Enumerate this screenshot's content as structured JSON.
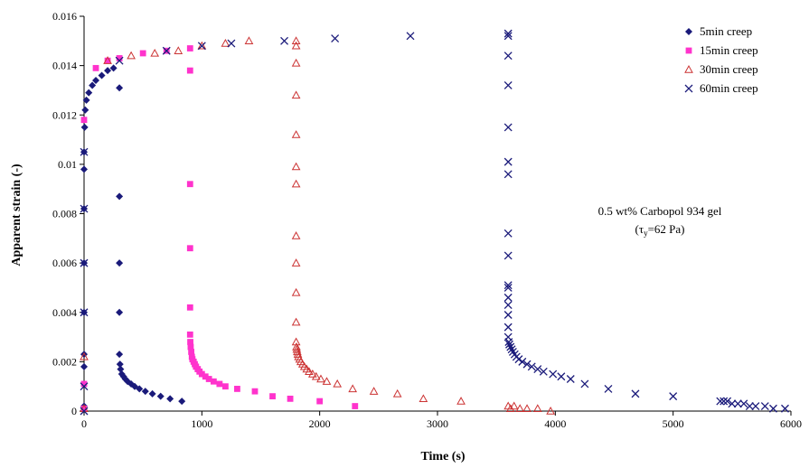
{
  "chart_data": {
    "type": "scatter",
    "xlabel": "Time (s)",
    "ylabel": "Apparent strain (-)",
    "xlim": [
      0,
      6000
    ],
    "ylim": [
      0,
      0.016
    ],
    "xticks": [
      "0",
      "1000",
      "2000",
      "3000",
      "4000",
      "5000",
      "6000"
    ],
    "yticks": [
      "0",
      "0.002",
      "0.004",
      "0.006",
      "0.008",
      "0.01",
      "0.012",
      "0.014",
      "0.016"
    ],
    "legend_position": "top-right",
    "grid": false,
    "annotation": {
      "line1": "0.5 wt% Carbopol 934 gel",
      "line2_prefix": "(τ",
      "line2_sub": "y",
      "line2_suffix": "=62 Pa)"
    },
    "series": [
      {
        "name": "5min creep",
        "marker": "diamond",
        "color": "#1a1a7a",
        "points": [
          [
            0,
            0.0002
          ],
          [
            0,
            0.0018
          ],
          [
            0,
            0.0023
          ],
          [
            0,
            0.004
          ],
          [
            0,
            0.006
          ],
          [
            0,
            0.0082
          ],
          [
            0,
            0.0098
          ],
          [
            0,
            0.0105
          ],
          [
            5,
            0.0115
          ],
          [
            10,
            0.0122
          ],
          [
            20,
            0.0126
          ],
          [
            40,
            0.0129
          ],
          [
            70,
            0.0132
          ],
          [
            100,
            0.0134
          ],
          [
            150,
            0.0136
          ],
          [
            200,
            0.0138
          ],
          [
            250,
            0.0139
          ],
          [
            300,
            0.0131
          ],
          [
            300,
            0.0087
          ],
          [
            300,
            0.006
          ],
          [
            300,
            0.004
          ],
          [
            300,
            0.0023
          ],
          [
            305,
            0.0019
          ],
          [
            310,
            0.0017
          ],
          [
            320,
            0.0015
          ],
          [
            335,
            0.0014
          ],
          [
            350,
            0.0013
          ],
          [
            370,
            0.0012
          ],
          [
            400,
            0.0011
          ],
          [
            430,
            0.001
          ],
          [
            470,
            0.0009
          ],
          [
            520,
            0.0008
          ],
          [
            580,
            0.0007
          ],
          [
            650,
            0.0006
          ],
          [
            730,
            0.0005
          ],
          [
            830,
            0.0004
          ]
        ]
      },
      {
        "name": "15min creep",
        "marker": "square",
        "color": "#ff33cc",
        "points": [
          [
            0,
            0.0001
          ],
          [
            0,
            0.0011
          ],
          [
            0,
            0.0118
          ],
          [
            100,
            0.0139
          ],
          [
            200,
            0.0142
          ],
          [
            300,
            0.0143
          ],
          [
            500,
            0.0145
          ],
          [
            700,
            0.0146
          ],
          [
            900,
            0.0147
          ],
          [
            900,
            0.0138
          ],
          [
            900,
            0.0092
          ],
          [
            900,
            0.0066
          ],
          [
            900,
            0.0042
          ],
          [
            900,
            0.0031
          ],
          [
            902,
            0.0028
          ],
          [
            905,
            0.0026
          ],
          [
            910,
            0.0024
          ],
          [
            915,
            0.0022
          ],
          [
            920,
            0.0021
          ],
          [
            930,
            0.002
          ],
          [
            940,
            0.0019
          ],
          [
            950,
            0.0018
          ],
          [
            965,
            0.0017
          ],
          [
            980,
            0.0016
          ],
          [
            1000,
            0.0015
          ],
          [
            1030,
            0.0014
          ],
          [
            1060,
            0.0013
          ],
          [
            1100,
            0.0012
          ],
          [
            1150,
            0.0011
          ],
          [
            1200,
            0.001
          ],
          [
            1300,
            0.0009
          ],
          [
            1450,
            0.0008
          ],
          [
            1600,
            0.0006
          ],
          [
            1750,
            0.0005
          ],
          [
            2000,
            0.0004
          ],
          [
            2300,
            0.0002
          ]
        ]
      },
      {
        "name": "30min creep",
        "marker": "triangle",
        "color": "#cc3333",
        "points": [
          [
            0,
            0.0001
          ],
          [
            0,
            0.0022
          ],
          [
            200,
            0.0142
          ],
          [
            400,
            0.0144
          ],
          [
            600,
            0.0145
          ],
          [
            800,
            0.0146
          ],
          [
            1000,
            0.0148
          ],
          [
            1200,
            0.0149
          ],
          [
            1400,
            0.015
          ],
          [
            1800,
            0.015
          ],
          [
            1800,
            0.0148
          ],
          [
            1800,
            0.0141
          ],
          [
            1800,
            0.0128
          ],
          [
            1800,
            0.0112
          ],
          [
            1800,
            0.0099
          ],
          [
            1800,
            0.0092
          ],
          [
            1800,
            0.0071
          ],
          [
            1800,
            0.006
          ],
          [
            1800,
            0.0048
          ],
          [
            1800,
            0.0036
          ],
          [
            1800,
            0.0028
          ],
          [
            1803,
            0.0026
          ],
          [
            1806,
            0.0025
          ],
          [
            1810,
            0.0024
          ],
          [
            1815,
            0.0023
          ],
          [
            1820,
            0.0022
          ],
          [
            1830,
            0.0021
          ],
          [
            1840,
            0.002
          ],
          [
            1855,
            0.0019
          ],
          [
            1870,
            0.0018
          ],
          [
            1890,
            0.0017
          ],
          [
            1910,
            0.0016
          ],
          [
            1940,
            0.0015
          ],
          [
            1970,
            0.0014
          ],
          [
            2010,
            0.0013
          ],
          [
            2060,
            0.0012
          ],
          [
            2150,
            0.0011
          ],
          [
            2280,
            0.0009
          ],
          [
            2460,
            0.0008
          ],
          [
            2660,
            0.0007
          ],
          [
            2880,
            0.0005
          ],
          [
            3200,
            0.0004
          ],
          [
            3600,
            0.0002
          ],
          [
            3620,
            0.0001
          ],
          [
            3650,
            0.0002
          ],
          [
            3700,
            0.0001
          ],
          [
            3760,
            0.0001
          ],
          [
            3850,
            0.0001
          ],
          [
            3960,
            0.0
          ]
        ]
      },
      {
        "name": "60min creep",
        "marker": "x",
        "color": "#1a1a7a",
        "points": [
          [
            0,
            0.0
          ],
          [
            0,
            0.001
          ],
          [
            0,
            0.004
          ],
          [
            0,
            0.006
          ],
          [
            0,
            0.0082
          ],
          [
            0,
            0.0105
          ],
          [
            300,
            0.0142
          ],
          [
            700,
            0.0146
          ],
          [
            1000,
            0.0148
          ],
          [
            1250,
            0.0149
          ],
          [
            1700,
            0.015
          ],
          [
            2130,
            0.0151
          ],
          [
            2770,
            0.0152
          ],
          [
            3600,
            0.0153
          ],
          [
            3600,
            0.0152
          ],
          [
            3600,
            0.0144
          ],
          [
            3600,
            0.0132
          ],
          [
            3600,
            0.0115
          ],
          [
            3600,
            0.0101
          ],
          [
            3600,
            0.0096
          ],
          [
            3600,
            0.0072
          ],
          [
            3600,
            0.0063
          ],
          [
            3600,
            0.0051
          ],
          [
            3600,
            0.005
          ],
          [
            3600,
            0.0046
          ],
          [
            3600,
            0.0043
          ],
          [
            3600,
            0.0039
          ],
          [
            3600,
            0.0034
          ],
          [
            3600,
            0.003
          ],
          [
            3605,
            0.0028
          ],
          [
            3610,
            0.0027
          ],
          [
            3620,
            0.0026
          ],
          [
            3630,
            0.0025
          ],
          [
            3640,
            0.0024
          ],
          [
            3655,
            0.0023
          ],
          [
            3670,
            0.0022
          ],
          [
            3690,
            0.0021
          ],
          [
            3720,
            0.002
          ],
          [
            3760,
            0.0019
          ],
          [
            3800,
            0.0018
          ],
          [
            3850,
            0.0017
          ],
          [
            3900,
            0.0016
          ],
          [
            3980,
            0.0015
          ],
          [
            4050,
            0.0014
          ],
          [
            4130,
            0.0013
          ],
          [
            4250,
            0.0011
          ],
          [
            4450,
            0.0009
          ],
          [
            4680,
            0.0007
          ],
          [
            5000,
            0.0006
          ],
          [
            5400,
            0.0004
          ],
          [
            5430,
            0.0004
          ],
          [
            5460,
            0.0004
          ],
          [
            5500,
            0.0003
          ],
          [
            5550,
            0.0003
          ],
          [
            5600,
            0.0003
          ],
          [
            5650,
            0.0002
          ],
          [
            5700,
            0.0002
          ],
          [
            5780,
            0.0002
          ],
          [
            5850,
            0.0001
          ],
          [
            5950,
            0.0001
          ]
        ]
      }
    ]
  }
}
